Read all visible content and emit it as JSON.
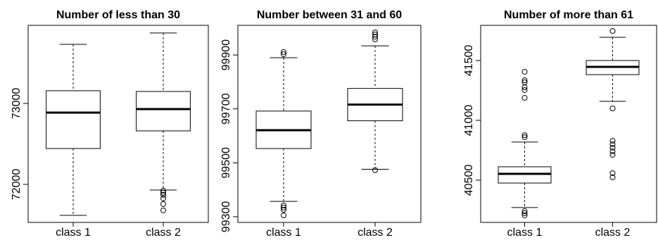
{
  "chart_data": [
    {
      "type": "box",
      "title": "Number of less than 30",
      "categories": [
        "class 1",
        "class 2"
      ],
      "boxes": [
        {
          "whisker_low": 71617,
          "q1": 72443,
          "median": 72887,
          "q3": 73157,
          "whisker_high": 73730,
          "outliers": []
        },
        {
          "whisker_low": 71930,
          "q1": 72661,
          "median": 72930,
          "q3": 73148,
          "whisker_high": 73870,
          "outliers": [
            71922,
            71896,
            71870,
            71826,
            71757,
            71678
          ]
        }
      ],
      "ylim": [
        71530,
        73965
      ],
      "yticks": [
        72000,
        73000
      ]
    },
    {
      "type": "box",
      "title": "Number between 31 and 60",
      "categories": [
        "class 1",
        "class 2"
      ],
      "boxes": [
        {
          "whisker_low": 99357,
          "q1": 99553,
          "median": 99621,
          "q3": 99692,
          "whisker_high": 99890,
          "outliers": [
            99911,
            99903,
            99342,
            99334,
            99326,
            99305
          ]
        },
        {
          "whisker_low": 99476,
          "q1": 99656,
          "median": 99716,
          "q3": 99776,
          "whisker_high": 99934,
          "outliers": [
            99984,
            99976,
            99968,
            99958,
            99473
          ]
        }
      ],
      "ylim": [
        99279,
        100010
      ],
      "yticks": [
        99300,
        99500,
        99700,
        99900
      ]
    },
    {
      "type": "box",
      "title": "Number of more than 61",
      "categories": [
        "class 1",
        "class 2"
      ],
      "boxes": [
        {
          "whisker_low": 40271,
          "q1": 40476,
          "median": 40553,
          "q3": 40612,
          "whisker_high": 40818,
          "outliers": [
            41406,
            41335,
            41318,
            41276,
            41253,
            41188,
            40876,
            40859,
            40241,
            40224,
            40206
          ]
        },
        {
          "whisker_low": 41159,
          "q1": 41382,
          "median": 41447,
          "q3": 41500,
          "whisker_high": 41694,
          "outliers": [
            41747,
            41100,
            40829,
            40800,
            40771,
            40741,
            40712,
            40559,
            40524
          ]
        }
      ],
      "ylim": [
        40147,
        41794
      ],
      "yticks": [
        40500,
        41000,
        41500
      ]
    }
  ]
}
